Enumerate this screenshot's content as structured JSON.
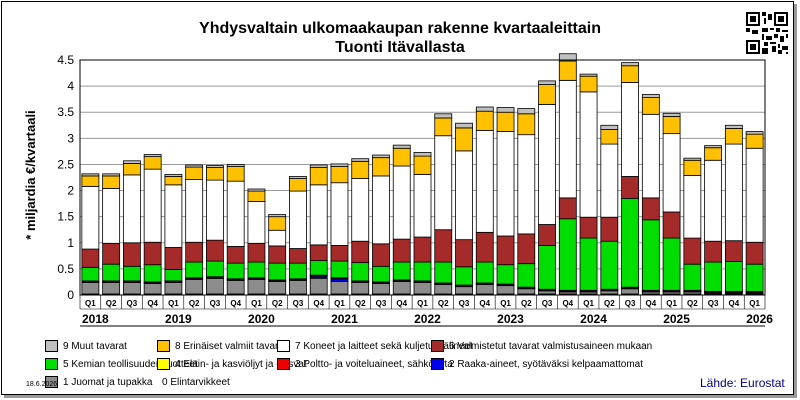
{
  "title_line1": "Yhdysvaltain ulkomaakaupan rakenne kvartaaleittain",
  "title_line2": "Tuonti Itävallasta",
  "date": "18.6.2026",
  "source": "Lähde: Eurostat",
  "qr_icon": "qr-code-icon",
  "chart_data": {
    "type": "bar",
    "stacked": true,
    "ylabel": "* miljardia €/kvartaali",
    "ylim": [
      0,
      4.5
    ],
    "yticks": [
      "0",
      "0.5",
      "1",
      "1.5",
      "2",
      "2.5",
      "3",
      "3.5",
      "4",
      "4.5"
    ],
    "grid": true,
    "legend_position": "bottom",
    "categories": [
      "Q1",
      "Q2",
      "Q3",
      "Q4",
      "Q1",
      "Q2",
      "Q3",
      "Q4",
      "Q1",
      "Q2",
      "Q3",
      "Q4",
      "Q1",
      "Q2",
      "Q3",
      "Q4",
      "Q1",
      "Q2",
      "Q3",
      "Q4",
      "Q1",
      "Q2",
      "Q3",
      "Q4",
      "Q1",
      "Q2",
      "Q3",
      "Q4",
      "Q1",
      "Q2",
      "Q3",
      "Q4",
      "Q1"
    ],
    "years": [
      {
        "label": "2018",
        "start": 0
      },
      {
        "label": "2019",
        "start": 4
      },
      {
        "label": "2020",
        "start": 8
      },
      {
        "label": "2021",
        "start": 12
      },
      {
        "label": "2022",
        "start": 16
      },
      {
        "label": "2023",
        "start": 20
      },
      {
        "label": "2024",
        "start": 24
      },
      {
        "label": "2025",
        "start": 28
      },
      {
        "label": "2026",
        "start": 32
      }
    ],
    "series": [
      {
        "name": "0 Elintarvikkeet",
        "color": "#111111",
        "values": [
          0.02,
          0.02,
          0.02,
          0.02,
          0.02,
          0.02,
          0.02,
          0.02,
          0.02,
          0.02,
          0.02,
          0.02,
          0.02,
          0.02,
          0.02,
          0.02,
          0.02,
          0.02,
          0.02,
          0.02,
          0.02,
          0.02,
          0.02,
          0.02,
          0.02,
          0.02,
          0.02,
          0.02,
          0.02,
          0.02,
          0.02,
          0.02,
          0.02
        ]
      },
      {
        "name": "1 Juomat ja tupakka",
        "color": "#8c8c8c",
        "values": [
          0.22,
          0.22,
          0.22,
          0.2,
          0.22,
          0.28,
          0.3,
          0.26,
          0.28,
          0.24,
          0.26,
          0.3,
          0.24,
          0.22,
          0.2,
          0.24,
          0.22,
          0.18,
          0.14,
          0.18,
          0.16,
          0.1,
          0.06,
          0.04,
          0.04,
          0.06,
          0.1,
          0.04,
          0.04,
          0.04,
          0.02,
          0.02,
          0.02
        ]
      },
      {
        "name": "2 Raaka-aineet, syötäväksi kelpaamattomat",
        "color": "#0000ee",
        "values": [
          0.01,
          0.01,
          0.01,
          0.01,
          0.01,
          0.01,
          0.01,
          0.01,
          0.01,
          0.01,
          0.01,
          0.04,
          0.05,
          0.01,
          0.01,
          0.01,
          0.01,
          0.01,
          0.01,
          0.01,
          0.01,
          0.01,
          0.01,
          0.01,
          0.01,
          0.01,
          0.01,
          0.01,
          0.01,
          0.01,
          0.01,
          0.01,
          0.01
        ]
      },
      {
        "name": "3 Poltto- ja voiteluaineet, sähkövirta",
        "color": "#ee0000",
        "values": [
          0.01,
          0.01,
          0.01,
          0.01,
          0.01,
          0.01,
          0.01,
          0.01,
          0.01,
          0.01,
          0.01,
          0.01,
          0.01,
          0.01,
          0.01,
          0.01,
          0.01,
          0.01,
          0.01,
          0.01,
          0.01,
          0.01,
          0.01,
          0.01,
          0.01,
          0.01,
          0.01,
          0.01,
          0.01,
          0.01,
          0.01,
          0.01,
          0.01
        ]
      },
      {
        "name": "4 Eläin- ja kasviöljyt ja -rasvat",
        "color": "#ffff00",
        "values": [
          0.01,
          0.01,
          0.01,
          0.01,
          0.01,
          0.01,
          0.01,
          0.01,
          0.01,
          0.01,
          0.01,
          0.01,
          0.01,
          0.01,
          0.01,
          0.01,
          0.01,
          0.01,
          0.01,
          0.01,
          0.01,
          0.01,
          0.01,
          0.01,
          0.01,
          0.01,
          0.01,
          0.01,
          0.01,
          0.01,
          0.01,
          0.01,
          0.01
        ]
      },
      {
        "name": "5 Kemian teollisuuden tuotteet",
        "color": "#00dd00",
        "values": [
          0.26,
          0.32,
          0.28,
          0.33,
          0.22,
          0.3,
          0.3,
          0.3,
          0.3,
          0.32,
          0.3,
          0.28,
          0.32,
          0.35,
          0.3,
          0.34,
          0.36,
          0.4,
          0.35,
          0.4,
          0.37,
          0.45,
          0.84,
          1.37,
          1.0,
          0.92,
          1.7,
          1.35,
          1.0,
          0.5,
          0.56,
          0.57,
          0.52
        ]
      },
      {
        "name": "6 Valmistetut tavarat valmistusaineen mukaan",
        "color": "#a52a2a",
        "values": [
          0.35,
          0.4,
          0.45,
          0.43,
          0.42,
          0.38,
          0.4,
          0.32,
          0.36,
          0.33,
          0.28,
          0.3,
          0.3,
          0.41,
          0.43,
          0.44,
          0.48,
          0.62,
          0.52,
          0.57,
          0.55,
          0.57,
          0.4,
          0.4,
          0.4,
          0.46,
          0.42,
          0.42,
          0.5,
          0.5,
          0.4,
          0.4,
          0.42
        ]
      },
      {
        "name": "7 Koneet ja laitteet sekä kuljetusvälineet",
        "color": "#ffffff",
        "values": [
          1.2,
          1.05,
          1.3,
          1.4,
          1.2,
          1.2,
          1.15,
          1.25,
          0.8,
          0.3,
          1.1,
          1.15,
          1.2,
          1.2,
          1.3,
          1.4,
          1.2,
          1.8,
          1.7,
          1.95,
          2.0,
          1.9,
          2.3,
          2.25,
          2.4,
          1.4,
          1.8,
          1.6,
          1.5,
          1.2,
          1.55,
          1.85,
          1.8
        ]
      },
      {
        "name": "8 Erinäiset valmiit tavarat",
        "color": "#ffc000",
        "values": [
          0.2,
          0.24,
          0.22,
          0.24,
          0.16,
          0.24,
          0.24,
          0.28,
          0.2,
          0.26,
          0.24,
          0.33,
          0.31,
          0.33,
          0.35,
          0.34,
          0.35,
          0.34,
          0.44,
          0.37,
          0.37,
          0.4,
          0.38,
          0.37,
          0.3,
          0.28,
          0.32,
          0.32,
          0.33,
          0.29,
          0.24,
          0.3,
          0.27
        ]
      },
      {
        "name": "9 Muut tavarat",
        "color": "#c0c0c0",
        "values": [
          0.04,
          0.04,
          0.05,
          0.04,
          0.04,
          0.04,
          0.04,
          0.04,
          0.04,
          0.04,
          0.04,
          0.05,
          0.05,
          0.05,
          0.05,
          0.06,
          0.07,
          0.08,
          0.09,
          0.08,
          0.09,
          0.1,
          0.07,
          0.14,
          0.04,
          0.08,
          0.06,
          0.06,
          0.06,
          0.04,
          0.04,
          0.06,
          0.05
        ]
      }
    ]
  }
}
